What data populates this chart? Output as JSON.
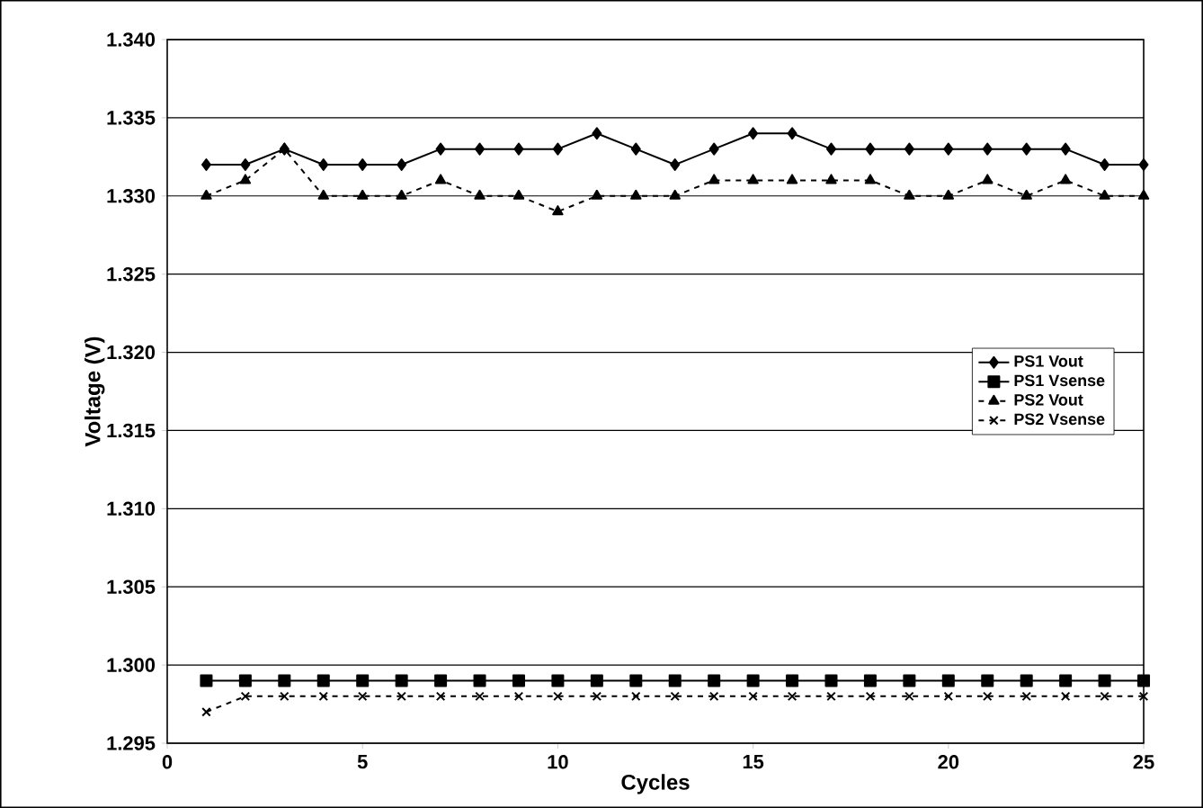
{
  "chart_data": {
    "type": "line",
    "xlabel": "Cycles",
    "ylabel": "Voltage (V)",
    "x": [
      1,
      2,
      3,
      4,
      5,
      6,
      7,
      8,
      9,
      10,
      11,
      12,
      13,
      14,
      15,
      16,
      17,
      18,
      19,
      20,
      21,
      22,
      23,
      24,
      25
    ],
    "xlim": [
      0,
      25
    ],
    "xticks": [
      0,
      5,
      10,
      15,
      20,
      25
    ],
    "ylim": [
      1.295,
      1.34
    ],
    "yticks": [
      1.295,
      {
        "value": 1.3,
        "label": "1.300"
      },
      1.305,
      {
        "value": 1.31,
        "label": "1.310"
      },
      1.315,
      {
        "value": 1.32,
        "label": "1.320"
      },
      1.325,
      {
        "value": 1.33,
        "label": "1.330"
      },
      1.335,
      {
        "value": 1.34,
        "label": "1.340"
      }
    ],
    "grid": "y",
    "legend": "right",
    "series": [
      {
        "name": "PS1 Vout",
        "color": "#000000",
        "marker": "diamond",
        "line_style": "solid",
        "values": [
          1.332,
          1.332,
          1.333,
          1.332,
          1.332,
          1.332,
          1.333,
          1.333,
          1.333,
          1.333,
          1.334,
          1.333,
          1.332,
          1.333,
          1.334,
          1.334,
          1.333,
          1.333,
          1.333,
          1.333,
          1.333,
          1.333,
          1.333,
          1.332,
          1.332
        ]
      },
      {
        "name": "PS1 Vsense",
        "color": "#000000",
        "marker": "square",
        "line_style": "solid",
        "values": [
          1.299,
          1.299,
          1.299,
          1.299,
          1.299,
          1.299,
          1.299,
          1.299,
          1.299,
          1.299,
          1.299,
          1.299,
          1.299,
          1.299,
          1.299,
          1.299,
          1.299,
          1.299,
          1.299,
          1.299,
          1.299,
          1.299,
          1.299,
          1.299,
          1.299
        ]
      },
      {
        "name": "PS2 Vout",
        "color": "#000000",
        "marker": "triangle",
        "line_style": "dashed",
        "values": [
          1.33,
          1.331,
          1.333,
          1.33,
          1.33,
          1.33,
          1.331,
          1.33,
          1.33,
          1.329,
          1.33,
          1.33,
          1.33,
          1.331,
          1.331,
          1.331,
          1.331,
          1.331,
          1.33,
          1.33,
          1.331,
          1.33,
          1.331,
          1.33,
          1.33
        ]
      },
      {
        "name": "PS2 Vsense",
        "color": "#000000",
        "marker": "cross",
        "line_style": "dashed",
        "values": [
          1.297,
          1.298,
          1.298,
          1.298,
          1.298,
          1.298,
          1.298,
          1.298,
          1.298,
          1.298,
          1.298,
          1.298,
          1.298,
          1.298,
          1.298,
          1.298,
          1.298,
          1.298,
          1.298,
          1.298,
          1.298,
          1.298,
          1.298,
          1.298,
          1.298
        ]
      }
    ]
  }
}
